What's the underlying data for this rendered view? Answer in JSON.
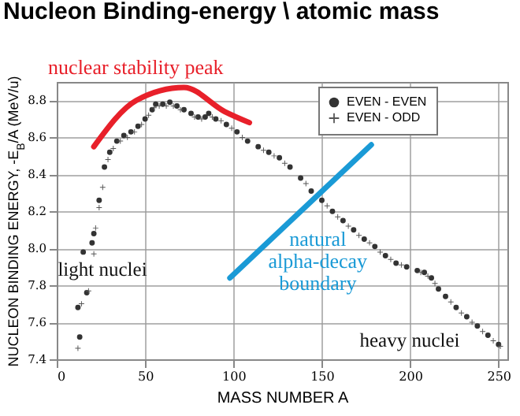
{
  "chart_data": {
    "type": "scatter",
    "title": "Nucleon Binding-energy \\ atomic mass",
    "xlabel": "MASS NUMBER A",
    "ylabel": "NUCLEON BINDING ENERGY, -E$_{B}$/A (MeV/u)",
    "xlim": [
      0,
      255
    ],
    "xticks": [
      0,
      50,
      100,
      150,
      200,
      250
    ],
    "ylim": [
      7.4,
      8.9
    ],
    "yticks": [
      7.4,
      7.6,
      7.8,
      {
        "value": 8,
        "label": "8.0"
      },
      8.2,
      8.4,
      8.6,
      8.8
    ],
    "grid": true,
    "legend": "top right",
    "series": [
      {
        "name": "EVEN - EVEN",
        "marker": "circle",
        "color": "#333333",
        "x": [
          12,
          13,
          15,
          17,
          20,
          21,
          24,
          27,
          30,
          34,
          38,
          42,
          46,
          50,
          54,
          56,
          60,
          64,
          68,
          72,
          76,
          80,
          84,
          86,
          90,
          96,
          102,
          108,
          114,
          120,
          126,
          132,
          138,
          144,
          150,
          156,
          162,
          168,
          174,
          180,
          186,
          192,
          198,
          204,
          208,
          212,
          216,
          220,
          226,
          232,
          238,
          244,
          250
        ],
        "values": [
          7.68,
          7.52,
          7.98,
          7.76,
          8.03,
          8.08,
          8.26,
          8.44,
          8.52,
          8.58,
          8.61,
          8.63,
          8.66,
          8.7,
          8.75,
          8.78,
          8.78,
          8.79,
          8.77,
          8.75,
          8.73,
          8.71,
          8.71,
          8.73,
          8.7,
          8.67,
          8.63,
          8.58,
          8.55,
          8.52,
          8.49,
          8.44,
          8.38,
          8.31,
          8.26,
          8.2,
          8.15,
          8.1,
          8.05,
          8.01,
          7.96,
          7.92,
          7.9,
          7.88,
          7.87,
          7.84,
          7.78,
          7.74,
          7.68,
          7.63,
          7.58,
          7.53,
          7.48
        ]
      },
      {
        "name": "EVEN - ODD",
        "marker": "cross",
        "color": "#555555",
        "x": [
          12,
          14,
          18,
          21,
          22,
          24,
          26,
          29,
          32,
          36,
          40,
          44,
          48,
          52,
          55,
          58,
          62,
          66,
          70,
          74,
          78,
          82,
          88,
          93,
          99,
          105,
          111,
          117,
          123,
          129,
          135,
          141,
          153,
          159,
          165,
          171,
          177,
          183,
          189,
          195,
          201,
          206,
          210,
          214,
          218,
          223,
          229,
          235,
          241,
          247,
          251
        ],
        "values": [
          7.46,
          7.7,
          7.77,
          7.97,
          8.11,
          8.22,
          8.33,
          8.48,
          8.54,
          8.58,
          8.6,
          8.63,
          8.67,
          8.72,
          8.76,
          8.77,
          8.77,
          8.77,
          8.75,
          null,
          8.71,
          8.7,
          8.71,
          8.69,
          8.65,
          8.6,
          null,
          8.53,
          8.5,
          8.46,
          null,
          8.35,
          8.23,
          8.17,
          8.12,
          8.07,
          8.03,
          7.98,
          7.94,
          7.91,
          null,
          7.87,
          7.85,
          7.81,
          null,
          7.71,
          7.65,
          7.6,
          7.55,
          7.5,
          7.47
        ]
      },
      {
        "name": "nuclear stability peak",
        "type": "line",
        "marker": "none",
        "color": "#e8202a",
        "x": [
          21,
          45,
          72,
          95,
          109
        ],
        "values": [
          8.55,
          8.8,
          8.87,
          8.74,
          8.68
        ]
      },
      {
        "name": "natural alpha-decay boundary",
        "type": "line",
        "marker": "none",
        "color": "#1a9ad6",
        "x": [
          98,
          178
        ],
        "values": [
          7.84,
          8.56
        ]
      }
    ],
    "annotations": [
      "light nuclei",
      "heavy nuclei"
    ]
  }
}
